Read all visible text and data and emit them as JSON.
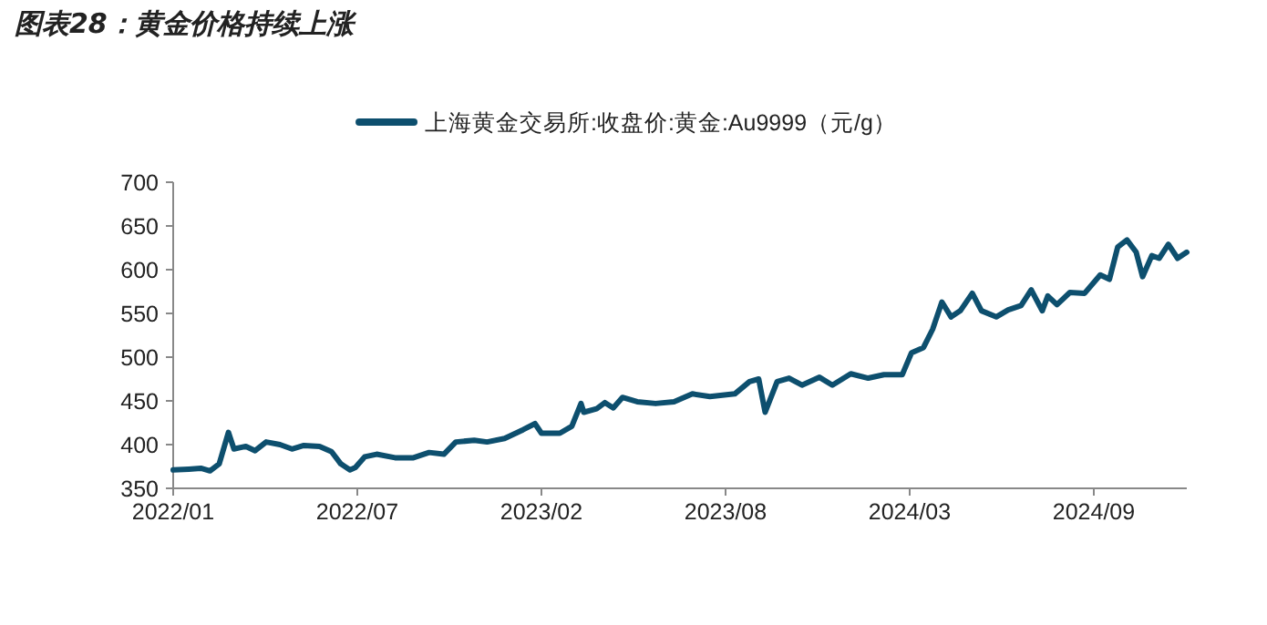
{
  "chart_data": {
    "type": "line",
    "title": "图表28：黄金价格持续上涨",
    "x": [
      "2022-01-04",
      "2022-01-21",
      "2022-02-03",
      "2022-02-13",
      "2022-02-23",
      "2022-03-05",
      "2022-03-11",
      "2022-03-24",
      "2022-04-03",
      "2022-04-15",
      "2022-04-30",
      "2022-05-13",
      "2022-05-26",
      "2022-06-12",
      "2022-06-25",
      "2022-07-05",
      "2022-07-15",
      "2022-07-21",
      "2022-07-31",
      "2022-08-13",
      "2022-09-02",
      "2022-09-22",
      "2022-10-09",
      "2022-10-25",
      "2022-11-07",
      "2022-11-27",
      "2022-12-11",
      "2022-12-30",
      "2023-01-19",
      "2023-02-01",
      "2023-02-08",
      "2023-02-28",
      "2023-03-13",
      "2023-03-23",
      "2023-03-26",
      "2023-04-09",
      "2023-04-18",
      "2023-04-27",
      "2023-05-07",
      "2023-05-23",
      "2023-06-12",
      "2023-07-02",
      "2023-07-22",
      "2023-08-10",
      "2023-09-06",
      "2023-09-22",
      "2023-10-02",
      "2023-10-09",
      "2023-10-22",
      "2023-11-04",
      "2023-11-18",
      "2023-12-07",
      "2023-12-21",
      "2024-01-10",
      "2024-01-29",
      "2024-02-15",
      "2024-03-06",
      "2024-03-16",
      "2024-03-29",
      "2024-04-08",
      "2024-04-18",
      "2024-04-28",
      "2024-05-08",
      "2024-05-21",
      "2024-05-31",
      "2024-06-16",
      "2024-06-29",
      "2024-07-13",
      "2024-07-24",
      "2024-08-05",
      "2024-08-11",
      "2024-08-21",
      "2024-09-04",
      "2024-09-20",
      "2024-10-07",
      "2024-10-17",
      "2024-10-26",
      "2024-11-05",
      "2024-11-15",
      "2024-11-22",
      "2024-12-02",
      "2024-12-10",
      "2024-12-20",
      "2024-12-30",
      "2025-01-09"
    ],
    "series": [
      {
        "name": "上海黄金交易所:收盘价:黄金:Au9999（元/g）",
        "color": "#0d4f6e",
        "values": [
          371,
          372,
          373,
          370,
          378,
          414,
          395,
          398,
          393,
          403,
          400,
          395,
          399,
          398,
          392,
          378,
          371,
          374,
          386,
          389,
          385,
          385,
          391,
          389,
          403,
          405,
          403,
          407,
          417,
          424,
          413,
          413,
          421,
          447,
          437,
          441,
          448,
          442,
          454,
          449,
          447,
          449,
          458,
          455,
          458,
          472,
          475,
          437,
          472,
          476,
          468,
          477,
          468,
          481,
          476,
          480,
          480,
          505,
          511,
          532,
          563,
          546,
          553,
          573,
          553,
          546,
          554,
          559,
          577,
          553,
          570,
          560,
          574,
          573,
          594,
          589,
          626,
          634,
          620,
          592,
          616,
          613,
          629,
          613,
          620
        ]
      }
    ],
    "xlim": [
      "2022-01-04",
      "2025-01-09"
    ],
    "ylim": [
      350,
      700
    ],
    "xticks": [
      {
        "value": "2022-01-04",
        "label": "2022/01"
      },
      {
        "value": "2022-07-23",
        "label": "2022/07"
      },
      {
        "value": "2023-02-08",
        "label": "2023/02"
      },
      {
        "value": "2023-08-27",
        "label": "2023/08"
      },
      {
        "value": "2024-03-14",
        "label": "2024/03"
      },
      {
        "value": "2024-09-30",
        "label": "2024/09"
      }
    ],
    "yticks": [
      350,
      400,
      450,
      500,
      550,
      600,
      650,
      700
    ],
    "legend": "top",
    "grid": false
  }
}
